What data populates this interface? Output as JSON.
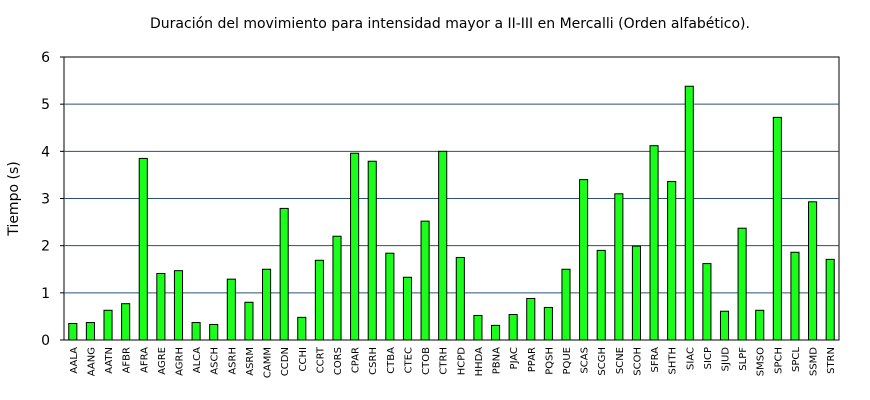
{
  "chart_data": {
    "type": "bar",
    "title": "Duración del movimiento para intensidad mayor a II-III en Mercalli (Orden alfabético).",
    "xlabel": "",
    "ylabel": "Tiempo (s)",
    "ylim": [
      0,
      6
    ],
    "yticks": [
      "0",
      "1",
      "2",
      "3",
      "4",
      "5",
      "6"
    ],
    "grid": "horizontal",
    "bar_color": "#1aff1a",
    "bar_stroke": "#000000",
    "grid_color": "#2a4f7a",
    "categories": [
      "AALA",
      "AANG",
      "AATN",
      "AFBR",
      "AFRA",
      "AGRE",
      "AGRH",
      "ALCA",
      "ASCH",
      "ASRH",
      "ASRM",
      "CAMM",
      "CCDN",
      "CCHI",
      "CCRT",
      "CORS",
      "CPAR",
      "CSRH",
      "CTBA",
      "CTEC",
      "CTOB",
      "CTRH",
      "HCPD",
      "HHDA",
      "PBNA",
      "PJAC",
      "PPAR",
      "PQSH",
      "PQUE",
      "SCAS",
      "SCGH",
      "SCNE",
      "SCOH",
      "SFRA",
      "SHTH",
      "SIAC",
      "SICP",
      "SJUD",
      "SLPF",
      "SMSO",
      "SPCH",
      "SPCL",
      "SSMD",
      "STRN"
    ],
    "values": [
      0.35,
      0.37,
      0.63,
      0.77,
      3.85,
      1.41,
      1.47,
      0.37,
      0.33,
      1.29,
      0.8,
      1.5,
      2.79,
      0.48,
      1.69,
      2.2,
      3.96,
      3.79,
      1.84,
      1.33,
      2.52,
      4.0,
      1.75,
      0.52,
      0.31,
      0.54,
      0.88,
      0.69,
      1.5,
      3.4,
      1.9,
      3.1,
      1.99,
      4.12,
      3.36,
      5.38,
      1.62,
      0.61,
      2.37,
      0.63,
      4.72,
      1.86,
      2.93,
      1.71
    ]
  }
}
